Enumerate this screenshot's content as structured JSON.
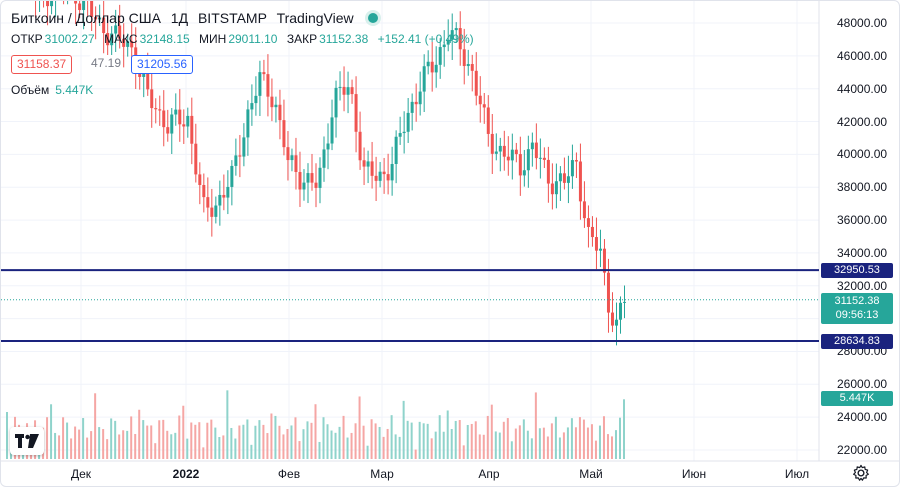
{
  "header": {
    "symbol": "Биткоин / Доллар США",
    "interval": "1Д",
    "exchange": "BITSTAMP",
    "source": "TradingView",
    "status_color": "#26a69a"
  },
  "ohlc": {
    "open_label": "ОТКР",
    "open": "31002.27",
    "high_label": "МАКС",
    "high": "32148.15",
    "low_label": "МИН",
    "low": "29011.10",
    "close_label": "ЗАКР",
    "close": "31152.38",
    "change": "+152.41 (+0.49%)"
  },
  "quote": {
    "sell": "31158.37",
    "spread": "47.19",
    "buy": "31205.56"
  },
  "volume": {
    "label": "Объём",
    "value": "5.447K"
  },
  "price_axis": {
    "ticks": [
      "48000.00",
      "46000.00",
      "44000.00",
      "42000.00",
      "40000.00",
      "38000.00",
      "36000.00",
      "34000.00",
      "32000.00",
      "30000.00",
      "28000.00",
      "26000.00",
      "24000.00",
      "22000.00"
    ]
  },
  "time_axis": {
    "labels": [
      "Дек",
      "2022",
      "Фев",
      "Мар",
      "Апр",
      "Май",
      "Июн",
      "Июл"
    ]
  },
  "horizontal_lines": [
    {
      "price": "32950.53",
      "color": "#1a237e"
    },
    {
      "price": "28634.83",
      "color": "#1a237e"
    }
  ],
  "last_price": {
    "price": "31152.38",
    "countdown": "09:56:13",
    "color": "#26a69a"
  },
  "volume_tag": {
    "value": "5.447K",
    "color": "#26a69a"
  },
  "colors": {
    "up": "#26a69a",
    "down": "#ef5350",
    "vol_up": "#8fd3cb",
    "vol_down": "#f5a6a4",
    "line": "#1a237e"
  },
  "chart_data": {
    "type": "candlestick",
    "series": [
      {
        "name": "",
        "open": [],
        "close": [],
        "high": [],
        "low": []
      }
    ]
  },
  "icons": {
    "logo": "tradingview-logo-icon",
    "settings": "gear-icon"
  }
}
